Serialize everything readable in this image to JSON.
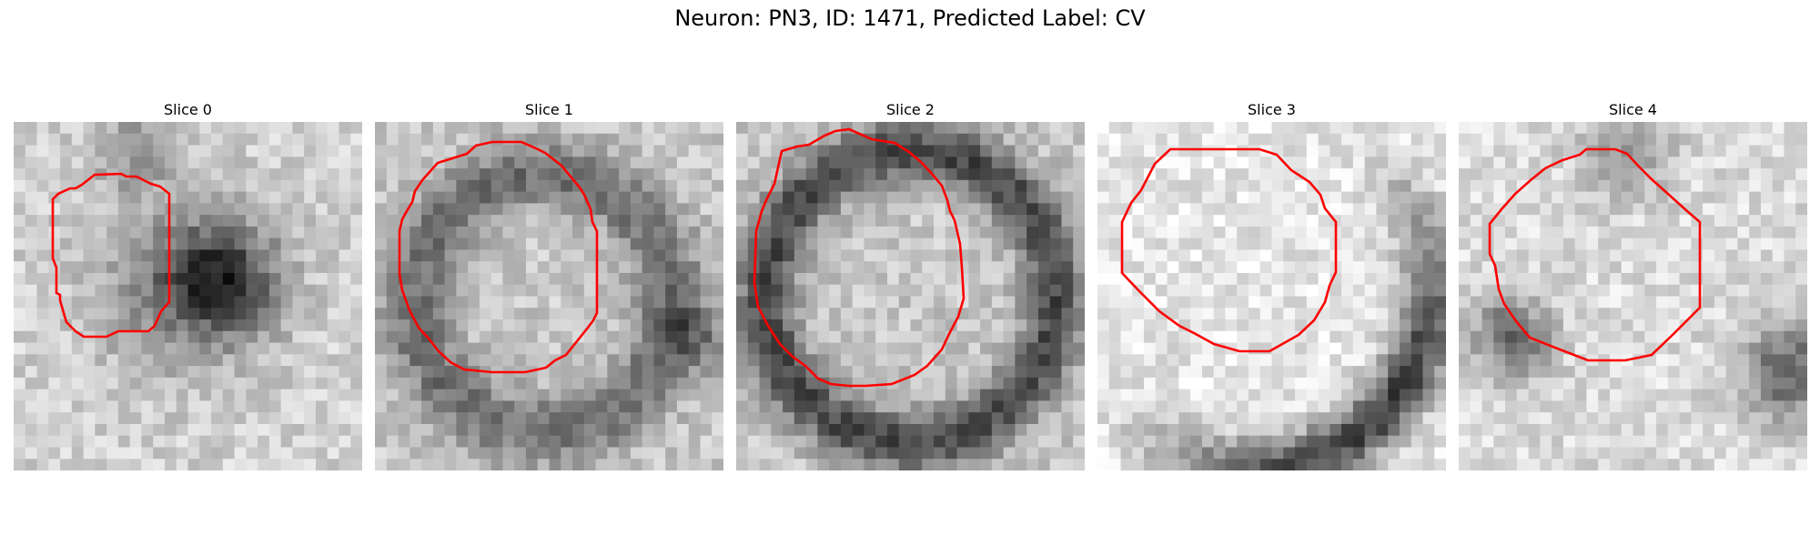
{
  "figure": {
    "title": "Neuron: PN3, ID: 1471, Predicted Label: CV"
  },
  "contour_color": "#ff0000",
  "panels": [
    {
      "title": "Slice 0"
    },
    {
      "title": "Slice 1"
    },
    {
      "title": "Slice 2"
    },
    {
      "title": "Slice 3"
    },
    {
      "title": "Slice 4"
    }
  ]
}
